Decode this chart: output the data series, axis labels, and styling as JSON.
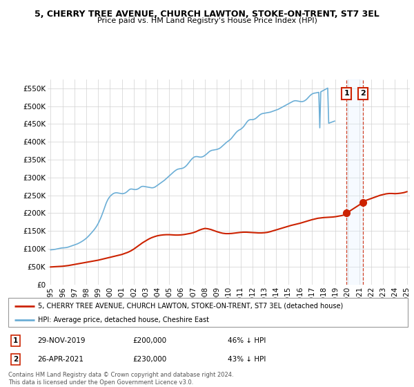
{
  "title": "5, CHERRY TREE AVENUE, CHURCH LAWTON, STOKE-ON-TRENT, ST7 3EL",
  "subtitle": "Price paid vs. HM Land Registry's House Price Index (HPI)",
  "legend_line1": "5, CHERRY TREE AVENUE, CHURCH LAWTON, STOKE-ON-TRENT, ST7 3EL (detached house)",
  "legend_line2": "HPI: Average price, detached house, Cheshire East",
  "footnote": "Contains HM Land Registry data © Crown copyright and database right 2024.\nThis data is licensed under the Open Government Licence v3.0.",
  "sale1_date": "29-NOV-2019",
  "sale1_price": "£200,000",
  "sale1_hpi": "46% ↓ HPI",
  "sale2_date": "26-APR-2021",
  "sale2_price": "£230,000",
  "sale2_hpi": "43% ↓ HPI",
  "sale1_x": 2019.92,
  "sale1_y": 200000,
  "sale2_x": 2021.32,
  "sale2_y": 230000,
  "ylim": [
    0,
    575000
  ],
  "yticks": [
    0,
    50000,
    100000,
    150000,
    200000,
    250000,
    300000,
    350000,
    400000,
    450000,
    500000,
    550000
  ],
  "xlim_start": 1994.75,
  "xlim_end": 2025.25,
  "hpi_color": "#6baed6",
  "price_color": "#cc2200",
  "sale_marker_color": "#cc2200",
  "shade_color": "#ddeeff",
  "background_color": "#ffffff",
  "grid_color": "#d0d0d0",
  "hpi_values": [
    97000,
    97200,
    97500,
    97800,
    98200,
    98700,
    99300,
    100000,
    100700,
    101300,
    101800,
    102200,
    102500,
    102700,
    102900,
    103100,
    103500,
    104100,
    104900,
    105900,
    107000,
    108100,
    109100,
    110000,
    110900,
    111700,
    112600,
    113700,
    115000,
    116400,
    117900,
    119500,
    121200,
    123000,
    124900,
    127000,
    129300,
    131800,
    134500,
    137400,
    140400,
    143500,
    146700,
    150000,
    153400,
    157000,
    161000,
    165500,
    170500,
    176000,
    182000,
    188500,
    195500,
    203000,
    211000,
    219000,
    226500,
    233000,
    238500,
    243000,
    246500,
    249500,
    252000,
    254000,
    255500,
    256500,
    257000,
    257000,
    256500,
    256000,
    255500,
    255000,
    254500,
    254500,
    255000,
    256000,
    257500,
    259500,
    262000,
    264500,
    266500,
    267500,
    267500,
    267000,
    266500,
    266000,
    266000,
    266500,
    267500,
    269000,
    271000,
    273000,
    274500,
    275000,
    275000,
    274500,
    274000,
    273500,
    273000,
    272500,
    272000,
    271500,
    271000,
    271000,
    271500,
    272500,
    274000,
    276000,
    278000,
    280000,
    282000,
    284000,
    286000,
    288000,
    290000,
    292000,
    294500,
    297000,
    299500,
    302000,
    304500,
    307000,
    309500,
    312000,
    314500,
    317000,
    319000,
    321000,
    322500,
    323500,
    324000,
    324500,
    325000,
    325500,
    326500,
    328000,
    330000,
    332500,
    335500,
    339000,
    342500,
    346000,
    349500,
    352500,
    355000,
    357000,
    358000,
    358500,
    358500,
    358000,
    357500,
    357000,
    357000,
    357500,
    358500,
    360000,
    362000,
    364000,
    366500,
    369000,
    371500,
    373500,
    375000,
    376000,
    376500,
    377000,
    377500,
    378000,
    378500,
    379500,
    380500,
    382000,
    384000,
    386500,
    389000,
    391500,
    394000,
    396500,
    399000,
    401000,
    403000,
    405000,
    407500,
    410500,
    414000,
    417500,
    421000,
    424500,
    427500,
    430000,
    432000,
    433500,
    435000,
    437000,
    439500,
    442500,
    446000,
    450000,
    454000,
    457500,
    460000,
    461500,
    462000,
    462000,
    462000,
    462500,
    463500,
    465000,
    467000,
    469500,
    472000,
    474500,
    476500,
    478000,
    479000,
    479500,
    480000,
    480500,
    481000,
    481500,
    482000,
    482500,
    483000,
    484000,
    485000,
    486000,
    487000,
    488000,
    489000,
    490000,
    491000,
    492500,
    494000,
    495500,
    497000,
    498500,
    500000,
    501500,
    503000,
    504500,
    506000,
    507500,
    509000,
    510500,
    512000,
    513500,
    514500,
    515000,
    515000,
    514500,
    514000,
    513500,
    513000,
    512500,
    512500,
    513000,
    514000,
    515500,
    517500,
    520000,
    523000,
    526000,
    529000,
    531500,
    533500,
    535000,
    536000,
    536500,
    537000,
    537500,
    538000,
    538500,
    439000,
    540000,
    541500,
    543000,
    544500,
    546000,
    547500,
    549000,
    550500,
    452000,
    453000,
    454000,
    455000,
    456000,
    457000,
    458000
  ],
  "hpi_years_start": 1995.0,
  "hpi_months": 288,
  "price_years": [
    1995.0,
    1995.25,
    1995.5,
    1995.75,
    1996.0,
    1996.25,
    1996.5,
    1996.75,
    1997.0,
    1997.25,
    1997.5,
    1997.75,
    1998.0,
    1998.25,
    1998.5,
    1998.75,
    1999.0,
    1999.25,
    1999.5,
    1999.75,
    2000.0,
    2000.25,
    2000.5,
    2000.75,
    2001.0,
    2001.25,
    2001.5,
    2001.75,
    2002.0,
    2002.25,
    2002.5,
    2002.75,
    2003.0,
    2003.25,
    2003.5,
    2003.75,
    2004.0,
    2004.25,
    2004.5,
    2004.75,
    2005.0,
    2005.25,
    2005.5,
    2005.75,
    2006.0,
    2006.25,
    2006.5,
    2006.75,
    2007.0,
    2007.25,
    2007.5,
    2007.75,
    2008.0,
    2008.25,
    2008.5,
    2008.75,
    2009.0,
    2009.25,
    2009.5,
    2009.75,
    2010.0,
    2010.25,
    2010.5,
    2010.75,
    2011.0,
    2011.25,
    2011.5,
    2011.75,
    2012.0,
    2012.25,
    2012.5,
    2012.75,
    2013.0,
    2013.25,
    2013.5,
    2013.75,
    2014.0,
    2014.25,
    2014.5,
    2014.75,
    2015.0,
    2015.25,
    2015.5,
    2015.75,
    2016.0,
    2016.25,
    2016.5,
    2016.75,
    2017.0,
    2017.25,
    2017.5,
    2017.75,
    2018.0,
    2018.25,
    2018.5,
    2018.75,
    2019.0,
    2019.25,
    2019.5,
    2019.75,
    2019.92,
    2021.32,
    2021.5,
    2021.75,
    2022.0,
    2022.25,
    2022.5,
    2022.75,
    2023.0,
    2023.25,
    2023.5,
    2023.75,
    2024.0,
    2024.25,
    2024.5,
    2024.75,
    2025.0
  ],
  "price_values": [
    49000,
    49500,
    50000,
    50500,
    51000,
    52000,
    53000,
    54500,
    56000,
    57500,
    59000,
    60500,
    62000,
    63500,
    65000,
    66500,
    68000,
    70000,
    72000,
    74000,
    76000,
    78000,
    80000,
    82000,
    84000,
    87000,
    90000,
    94000,
    99000,
    105000,
    111000,
    117000,
    122000,
    127000,
    131000,
    134000,
    136500,
    138000,
    139000,
    139500,
    139500,
    139000,
    138500,
    138500,
    139000,
    140000,
    141500,
    143000,
    145000,
    148000,
    152000,
    155000,
    157000,
    156000,
    154000,
    151000,
    148000,
    145500,
    143500,
    142500,
    142500,
    143000,
    144000,
    145000,
    146000,
    146500,
    146500,
    146000,
    145500,
    145000,
    144500,
    144500,
    145000,
    146000,
    148000,
    150500,
    153000,
    155500,
    158000,
    160500,
    163000,
    165500,
    167500,
    169500,
    171500,
    174000,
    176500,
    179000,
    181500,
    183500,
    185500,
    186500,
    187500,
    188000,
    188500,
    189000,
    190000,
    191500,
    193000,
    195000,
    200000,
    230000,
    235000,
    238000,
    241000,
    244000,
    247000,
    250000,
    252000,
    254000,
    255000,
    255000,
    254500,
    255000,
    256000,
    257500,
    260000
  ]
}
